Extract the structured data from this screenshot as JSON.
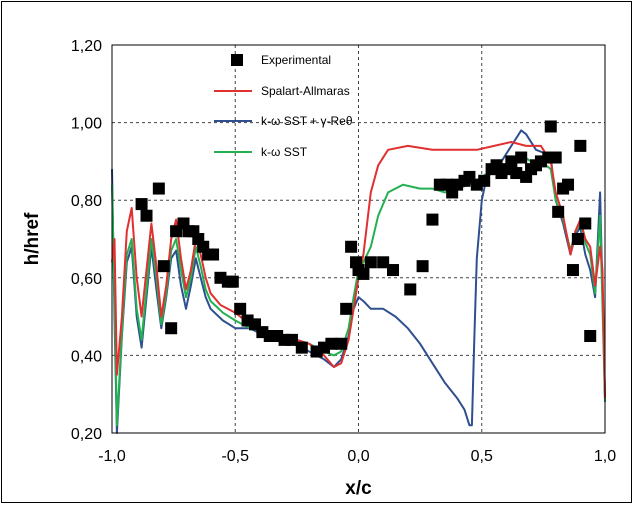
{
  "chart_data": {
    "type": "line",
    "title": "",
    "xlabel": "x/c",
    "ylabel": "h/href",
    "xlim": [
      -1.0,
      1.0
    ],
    "ylim": [
      0.2,
      1.2
    ],
    "xticks": [
      -1.0,
      -0.5,
      0.0,
      0.5,
      1.0
    ],
    "xtick_labels": [
      "-1,0",
      "-0,5",
      "0,0",
      "0,5",
      "1,0"
    ],
    "yticks": [
      0.2,
      0.4,
      0.6,
      0.8,
      1.0,
      1.2
    ],
    "ytick_labels": [
      "0,20",
      "0,40",
      "0,60",
      "0,80",
      "1,00",
      "1,20"
    ],
    "grid": "dashed, at each tick",
    "legend_position": "top-left inside plot area",
    "series": [
      {
        "name": "Experimental",
        "kind": "markers",
        "marker": "square",
        "color": "#000000",
        "points": [
          [
            -0.88,
            0.79
          ],
          [
            -0.86,
            0.76
          ],
          [
            -0.81,
            0.83
          ],
          [
            -0.79,
            0.63
          ],
          [
            -0.76,
            0.47
          ],
          [
            -0.74,
            0.72
          ],
          [
            -0.71,
            0.74
          ],
          [
            -0.69,
            0.72
          ],
          [
            -0.67,
            0.72
          ],
          [
            -0.65,
            0.7
          ],
          [
            -0.63,
            0.68
          ],
          [
            -0.61,
            0.66
          ],
          [
            -0.59,
            0.66
          ],
          [
            -0.56,
            0.6
          ],
          [
            -0.53,
            0.59
          ],
          [
            -0.51,
            0.59
          ],
          [
            -0.48,
            0.52
          ],
          [
            -0.45,
            0.49
          ],
          [
            -0.42,
            0.48
          ],
          [
            -0.39,
            0.46
          ],
          [
            -0.36,
            0.45
          ],
          [
            -0.33,
            0.45
          ],
          [
            -0.3,
            0.44
          ],
          [
            -0.27,
            0.44
          ],
          [
            -0.23,
            0.42
          ],
          [
            -0.17,
            0.41
          ],
          [
            -0.14,
            0.42
          ],
          [
            -0.11,
            0.43
          ],
          [
            -0.07,
            0.43
          ],
          [
            -0.05,
            0.52
          ],
          [
            -0.03,
            0.68
          ],
          [
            -0.01,
            0.64
          ],
          [
            0.0,
            0.62
          ],
          [
            0.02,
            0.61
          ],
          [
            0.05,
            0.64
          ],
          [
            0.1,
            0.64
          ],
          [
            0.14,
            0.62
          ],
          [
            0.21,
            0.57
          ],
          [
            0.26,
            0.63
          ],
          [
            0.3,
            0.75
          ],
          [
            0.33,
            0.84
          ],
          [
            0.36,
            0.84
          ],
          [
            0.38,
            0.82
          ],
          [
            0.4,
            0.84
          ],
          [
            0.43,
            0.85
          ],
          [
            0.45,
            0.86
          ],
          [
            0.48,
            0.84
          ],
          [
            0.51,
            0.85
          ],
          [
            0.54,
            0.88
          ],
          [
            0.56,
            0.89
          ],
          [
            0.58,
            0.87
          ],
          [
            0.6,
            0.88
          ],
          [
            0.62,
            0.9
          ],
          [
            0.64,
            0.87
          ],
          [
            0.66,
            0.91
          ],
          [
            0.68,
            0.86
          ],
          [
            0.7,
            0.88
          ],
          [
            0.72,
            0.89
          ],
          [
            0.74,
            0.9
          ],
          [
            0.77,
            0.91
          ],
          [
            0.78,
            0.99
          ],
          [
            0.8,
            0.91
          ],
          [
            0.81,
            0.77
          ],
          [
            0.83,
            0.83
          ],
          [
            0.85,
            0.84
          ],
          [
            0.87,
            0.62
          ],
          [
            0.89,
            0.7
          ],
          [
            0.9,
            0.94
          ],
          [
            0.92,
            0.74
          ],
          [
            0.94,
            0.45
          ]
        ]
      },
      {
        "name": "Spalart-Allmaras",
        "kind": "line",
        "color": "#e03030",
        "points": [
          [
            -1.0,
            0.64
          ],
          [
            -0.99,
            0.7
          ],
          [
            -0.98,
            0.35
          ],
          [
            -0.96,
            0.5
          ],
          [
            -0.94,
            0.72
          ],
          [
            -0.92,
            0.78
          ],
          [
            -0.9,
            0.6
          ],
          [
            -0.88,
            0.5
          ],
          [
            -0.86,
            0.62
          ],
          [
            -0.84,
            0.74
          ],
          [
            -0.82,
            0.63
          ],
          [
            -0.8,
            0.5
          ],
          [
            -0.78,
            0.58
          ],
          [
            -0.76,
            0.7
          ],
          [
            -0.74,
            0.75
          ],
          [
            -0.72,
            0.65
          ],
          [
            -0.7,
            0.57
          ],
          [
            -0.68,
            0.62
          ],
          [
            -0.66,
            0.7
          ],
          [
            -0.64,
            0.66
          ],
          [
            -0.62,
            0.6
          ],
          [
            -0.6,
            0.56
          ],
          [
            -0.56,
            0.53
          ],
          [
            -0.5,
            0.51
          ],
          [
            -0.44,
            0.48
          ],
          [
            -0.38,
            0.46
          ],
          [
            -0.3,
            0.45
          ],
          [
            -0.2,
            0.43
          ],
          [
            -0.14,
            0.4
          ],
          [
            -0.1,
            0.37
          ],
          [
            -0.07,
            0.38
          ],
          [
            -0.04,
            0.44
          ],
          [
            -0.02,
            0.52
          ],
          [
            0.0,
            0.6
          ],
          [
            0.02,
            0.66
          ],
          [
            0.05,
            0.82
          ],
          [
            0.08,
            0.89
          ],
          [
            0.12,
            0.93
          ],
          [
            0.2,
            0.94
          ],
          [
            0.3,
            0.93
          ],
          [
            0.4,
            0.93
          ],
          [
            0.48,
            0.93
          ],
          [
            0.55,
            0.94
          ],
          [
            0.62,
            0.95
          ],
          [
            0.68,
            0.94
          ],
          [
            0.74,
            0.94
          ],
          [
            0.78,
            0.9
          ],
          [
            0.8,
            0.82
          ],
          [
            0.83,
            0.76
          ],
          [
            0.86,
            0.66
          ],
          [
            0.88,
            0.72
          ],
          [
            0.9,
            0.75
          ],
          [
            0.92,
            0.7
          ],
          [
            0.94,
            0.68
          ],
          [
            0.96,
            0.58
          ],
          [
            0.98,
            0.68
          ],
          [
            0.99,
            0.62
          ],
          [
            1.0,
            0.29
          ]
        ]
      },
      {
        "name": "k-ω SST + γ-Reθ",
        "kind": "line",
        "color": "#2f4f8f",
        "points": [
          [
            -1.0,
            0.88
          ],
          [
            -0.99,
            0.5
          ],
          [
            -0.98,
            0.2
          ],
          [
            -0.96,
            0.45
          ],
          [
            -0.94,
            0.64
          ],
          [
            -0.92,
            0.68
          ],
          [
            -0.9,
            0.5
          ],
          [
            -0.88,
            0.42
          ],
          [
            -0.86,
            0.55
          ],
          [
            -0.84,
            0.68
          ],
          [
            -0.82,
            0.57
          ],
          [
            -0.8,
            0.47
          ],
          [
            -0.78,
            0.55
          ],
          [
            -0.76,
            0.65
          ],
          [
            -0.74,
            0.67
          ],
          [
            -0.72,
            0.58
          ],
          [
            -0.7,
            0.52
          ],
          [
            -0.68,
            0.58
          ],
          [
            -0.66,
            0.65
          ],
          [
            -0.64,
            0.6
          ],
          [
            -0.62,
            0.55
          ],
          [
            -0.6,
            0.52
          ],
          [
            -0.55,
            0.49
          ],
          [
            -0.5,
            0.47
          ],
          [
            -0.44,
            0.47
          ],
          [
            -0.38,
            0.45
          ],
          [
            -0.3,
            0.44
          ],
          [
            -0.2,
            0.41
          ],
          [
            -0.14,
            0.39
          ],
          [
            -0.1,
            0.37
          ],
          [
            -0.07,
            0.39
          ],
          [
            -0.04,
            0.45
          ],
          [
            -0.02,
            0.52
          ],
          [
            0.0,
            0.55
          ],
          [
            0.02,
            0.54
          ],
          [
            0.05,
            0.52
          ],
          [
            0.1,
            0.52
          ],
          [
            0.15,
            0.5
          ],
          [
            0.2,
            0.47
          ],
          [
            0.25,
            0.43
          ],
          [
            0.3,
            0.38
          ],
          [
            0.35,
            0.33
          ],
          [
            0.4,
            0.29
          ],
          [
            0.43,
            0.26
          ],
          [
            0.45,
            0.22
          ],
          [
            0.46,
            0.22
          ],
          [
            0.47,
            0.45
          ],
          [
            0.48,
            0.65
          ],
          [
            0.5,
            0.8
          ],
          [
            0.52,
            0.86
          ],
          [
            0.56,
            0.88
          ],
          [
            0.6,
            0.92
          ],
          [
            0.63,
            0.95
          ],
          [
            0.66,
            0.98
          ],
          [
            0.68,
            0.97
          ],
          [
            0.72,
            0.93
          ],
          [
            0.76,
            0.92
          ],
          [
            0.78,
            0.91
          ],
          [
            0.8,
            0.8
          ],
          [
            0.83,
            0.74
          ],
          [
            0.86,
            0.66
          ],
          [
            0.88,
            0.71
          ],
          [
            0.9,
            0.73
          ],
          [
            0.92,
            0.66
          ],
          [
            0.94,
            0.62
          ],
          [
            0.96,
            0.55
          ],
          [
            0.98,
            0.82
          ],
          [
            1.0,
            0.29
          ]
        ]
      },
      {
        "name": "k-ω SST",
        "kind": "line",
        "color": "#22b050",
        "points": [
          [
            -1.0,
            0.84
          ],
          [
            -0.99,
            0.55
          ],
          [
            -0.98,
            0.22
          ],
          [
            -0.96,
            0.46
          ],
          [
            -0.94,
            0.66
          ],
          [
            -0.92,
            0.7
          ],
          [
            -0.9,
            0.52
          ],
          [
            -0.88,
            0.44
          ],
          [
            -0.86,
            0.57
          ],
          [
            -0.84,
            0.7
          ],
          [
            -0.82,
            0.6
          ],
          [
            -0.8,
            0.48
          ],
          [
            -0.78,
            0.56
          ],
          [
            -0.76,
            0.67
          ],
          [
            -0.74,
            0.7
          ],
          [
            -0.72,
            0.62
          ],
          [
            -0.7,
            0.55
          ],
          [
            -0.68,
            0.6
          ],
          [
            -0.66,
            0.68
          ],
          [
            -0.64,
            0.63
          ],
          [
            -0.62,
            0.57
          ],
          [
            -0.6,
            0.54
          ],
          [
            -0.55,
            0.51
          ],
          [
            -0.5,
            0.49
          ],
          [
            -0.44,
            0.47
          ],
          [
            -0.38,
            0.46
          ],
          [
            -0.3,
            0.45
          ],
          [
            -0.2,
            0.43
          ],
          [
            -0.14,
            0.41
          ],
          [
            -0.1,
            0.4
          ],
          [
            -0.07,
            0.41
          ],
          [
            -0.04,
            0.47
          ],
          [
            -0.02,
            0.55
          ],
          [
            0.0,
            0.62
          ],
          [
            0.02,
            0.64
          ],
          [
            0.05,
            0.68
          ],
          [
            0.08,
            0.76
          ],
          [
            0.12,
            0.82
          ],
          [
            0.18,
            0.84
          ],
          [
            0.25,
            0.83
          ],
          [
            0.3,
            0.83
          ],
          [
            0.35,
            0.82
          ],
          [
            0.4,
            0.83
          ],
          [
            0.45,
            0.84
          ],
          [
            0.5,
            0.86
          ],
          [
            0.55,
            0.88
          ],
          [
            0.6,
            0.89
          ],
          [
            0.65,
            0.92
          ],
          [
            0.7,
            0.9
          ],
          [
            0.74,
            0.9
          ],
          [
            0.78,
            0.88
          ],
          [
            0.8,
            0.8
          ],
          [
            0.83,
            0.75
          ],
          [
            0.86,
            0.67
          ],
          [
            0.88,
            0.72
          ],
          [
            0.9,
            0.74
          ],
          [
            0.92,
            0.69
          ],
          [
            0.94,
            0.66
          ],
          [
            0.96,
            0.56
          ],
          [
            0.98,
            0.76
          ],
          [
            1.0,
            0.28
          ]
        ]
      }
    ]
  }
}
